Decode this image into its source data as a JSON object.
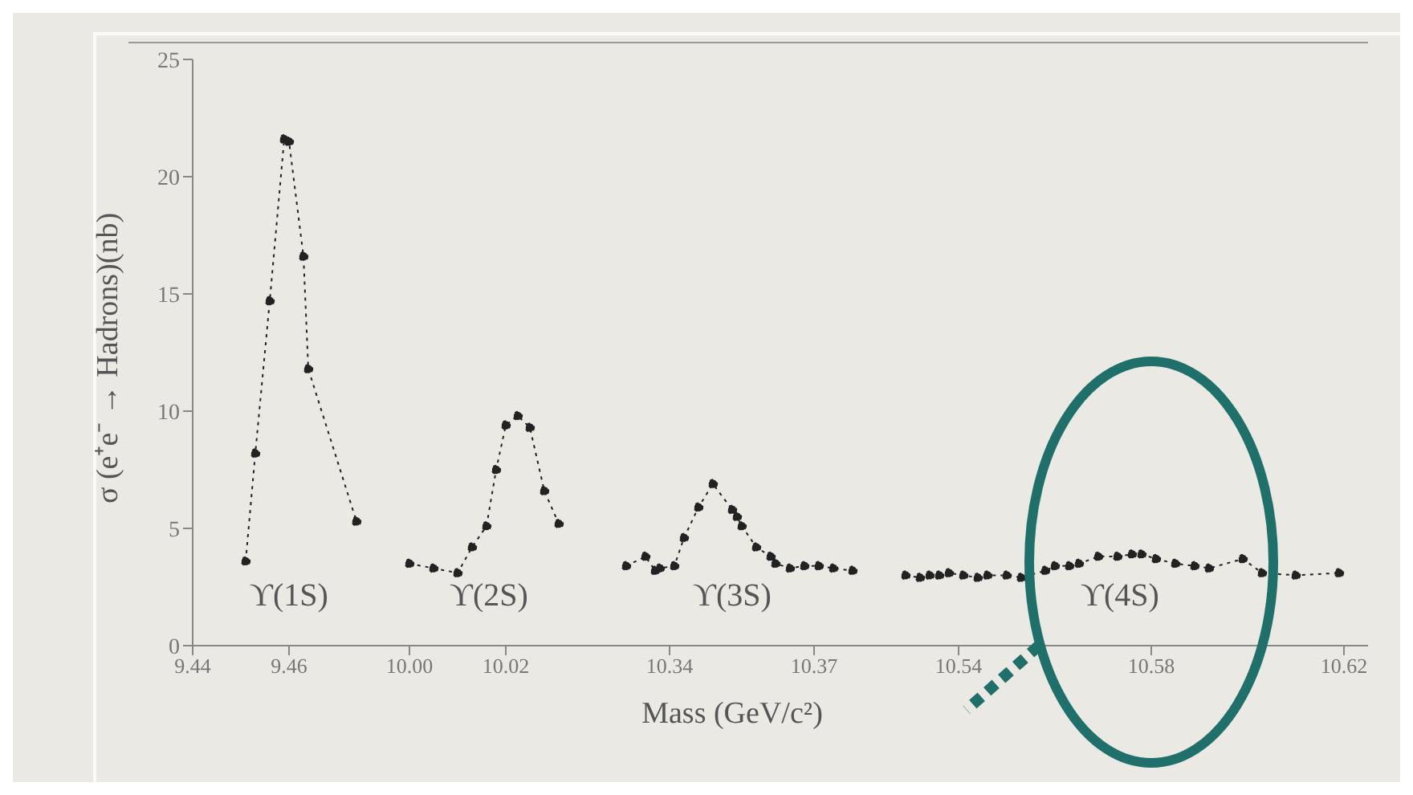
{
  "chart_data": [
    {
      "type": "line",
      "ylabel": "σ (e⁺e⁻ → Hadrons)(nb)",
      "xlim": [
        9.44,
        9.48
      ],
      "xticks": [
        9.44,
        9.46
      ],
      "ylim": [
        0,
        25
      ],
      "yticks": [
        0,
        5,
        10,
        15,
        20,
        25
      ],
      "grid": false,
      "marker": "circle",
      "line_style": "dotted",
      "series": [
        {
          "color": "#222222",
          "x": [
            9.451,
            9.453,
            9.456,
            9.459,
            9.46,
            9.463,
            9.464,
            9.474
          ],
          "values": [
            3.6,
            8.2,
            14.7,
            21.6,
            21.5,
            16.6,
            11.8,
            5.3
          ]
        }
      ],
      "annotations": [
        "ϒ(1S)"
      ]
    },
    {
      "type": "line",
      "xlim": [
        9.995,
        10.038
      ],
      "xticks": [
        {
          "value": 10.0,
          "label": "10.00"
        },
        {
          "value": 10.02,
          "label": "10.02"
        }
      ],
      "ylim": [
        0,
        25
      ],
      "tick_labels": "x",
      "grid": false,
      "marker": "circle",
      "line_style": "dotted",
      "series": [
        {
          "color": "#222222",
          "x": [
            10.0,
            10.005,
            10.01,
            10.013,
            10.016,
            10.018,
            10.02,
            10.0225,
            10.025,
            10.028,
            10.031
          ],
          "values": [
            3.5,
            3.3,
            3.1,
            4.2,
            5.1,
            7.5,
            9.4,
            9.8,
            9.3,
            6.6,
            5.2
          ]
        }
      ],
      "annotations": [
        "ϒ(2S)"
      ]
    },
    {
      "type": "line",
      "xlabel": "Mass (GeV/c²)",
      "xlim": [
        10.324,
        10.382
      ],
      "xticks": [
        10.34,
        10.37
      ],
      "ylim": [
        0,
        25
      ],
      "tick_labels": "x",
      "grid": false,
      "marker": "circle",
      "line_style": "dotted",
      "series": [
        {
          "color": "#222222",
          "x": [
            10.331,
            10.335,
            10.337,
            10.338,
            10.341,
            10.343,
            10.346,
            10.349,
            10.353,
            10.354,
            10.355,
            10.358,
            10.361,
            10.362,
            10.365,
            10.368,
            10.371,
            10.374,
            10.378
          ],
          "values": [
            3.4,
            3.8,
            3.2,
            3.3,
            3.4,
            4.6,
            5.9,
            6.9,
            5.8,
            5.5,
            5.1,
            4.2,
            3.8,
            3.5,
            3.3,
            3.4,
            3.4,
            3.3,
            3.2
          ]
        }
      ],
      "annotations": [
        "ϒ(3S)"
      ]
    },
    {
      "type": "line",
      "xlim": [
        10.522,
        10.625
      ],
      "xticks": [
        10.54,
        10.58,
        10.62
      ],
      "ylim": [
        0,
        25
      ],
      "tick_labels": "x",
      "grid": false,
      "marker": "circle",
      "line_style": "dotted",
      "series": [
        {
          "color": "#222222",
          "x": [
            10.529,
            10.532,
            10.534,
            10.536,
            10.538,
            10.541,
            10.544,
            10.546,
            10.55,
            10.553,
            10.558,
            10.56,
            10.563,
            10.565,
            10.569,
            10.573,
            10.576,
            10.578,
            10.581,
            10.585,
            10.589,
            10.592,
            10.599,
            10.603,
            10.61,
            10.619
          ],
          "values": [
            3.0,
            2.9,
            3.0,
            3.0,
            3.1,
            3.0,
            2.9,
            3.0,
            3.0,
            2.9,
            3.2,
            3.4,
            3.4,
            3.5,
            3.8,
            3.8,
            3.9,
            3.9,
            3.7,
            3.5,
            3.4,
            3.3,
            3.7,
            3.1,
            3.0,
            3.1
          ]
        }
      ],
      "annotations": [
        "ϒ(4S)"
      ]
    }
  ]
}
